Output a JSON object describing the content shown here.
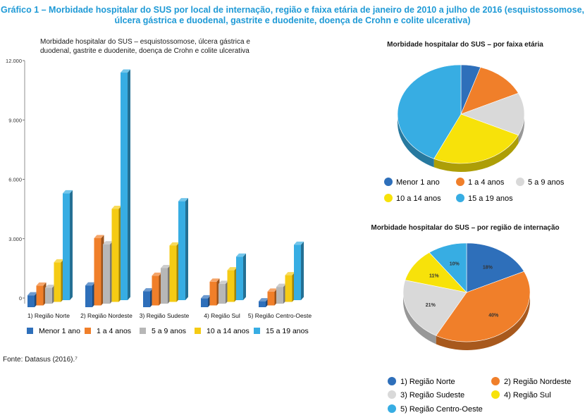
{
  "title": "Gráfico 1 – Morbidade hospitalar do SUS por local de internação, região e faixa etária de janeiro de 2010 a julho de 2016 (esquistossomose, úlcera gástrica e duodenal, gastrite e duodenite, doença de Crohn e colite ulcerativa)",
  "source": "Fonte: Datasus (2016).⁷",
  "colors": {
    "blue": "#2e6fba",
    "orange": "#f07f2a",
    "gray": "#b7b7b7",
    "yellow": "#f5cb14",
    "cyan": "#37ade3",
    "pie_yellow": "#f7e20a"
  },
  "chart_data": [
    {
      "type": "bar",
      "title": "Morbidade hospitalar do SUS – esquistossomose, úlcera gástrica e duodenal, gastrite e duodenite, doença de Crohn e colite ulcerativa",
      "categories": [
        "1) Região Norte",
        "2) Região Nordeste",
        "3) Região Sudeste",
        "4) Região Sul",
        "5) Região Centro-Oeste"
      ],
      "series": [
        {
          "name": "Menor 1 ano",
          "values": [
            600,
            1100,
            800,
            450,
            300
          ]
        },
        {
          "name": "1 a 4 anos",
          "values": [
            1000,
            3400,
            1500,
            1200,
            700
          ]
        },
        {
          "name": "5 a 9 anos",
          "values": [
            800,
            3000,
            1800,
            1000,
            850
          ]
        },
        {
          "name": "10 a 14 anos",
          "values": [
            2000,
            4700,
            2850,
            1600,
            1350
          ]
        },
        {
          "name": "15 a 19 anos",
          "values": [
            5400,
            11500,
            5000,
            2200,
            2800
          ]
        }
      ],
      "yticks": [
        "0",
        "3.000",
        "6.000",
        "9.000",
        "12.000"
      ],
      "ylim": [
        0,
        12000
      ],
      "legend": "bottom"
    },
    {
      "type": "pie",
      "title": "Morbidade hospitalar do SUS – por faixa etária",
      "labels": [
        "Menor 1 ano",
        "1 a 4 anos",
        "5 a 9 anos",
        "10 a 14 anos",
        "15 a 19 anos"
      ],
      "values": [
        5,
        13,
        14,
        25,
        43
      ],
      "legend": "bottom"
    },
    {
      "type": "pie",
      "title": "Morbidade hospitalar do SUS – por região de internação",
      "labels": [
        "1) Região Norte",
        "2) Região Nordeste",
        "3) Região Sudeste",
        "4) Região Sul",
        "5) Região Centro-Oeste"
      ],
      "values": [
        18,
        40,
        21,
        11,
        10
      ],
      "value_labels": [
        "18%",
        "40%",
        "21%",
        "11%",
        "10%"
      ],
      "legend": "bottom"
    }
  ]
}
